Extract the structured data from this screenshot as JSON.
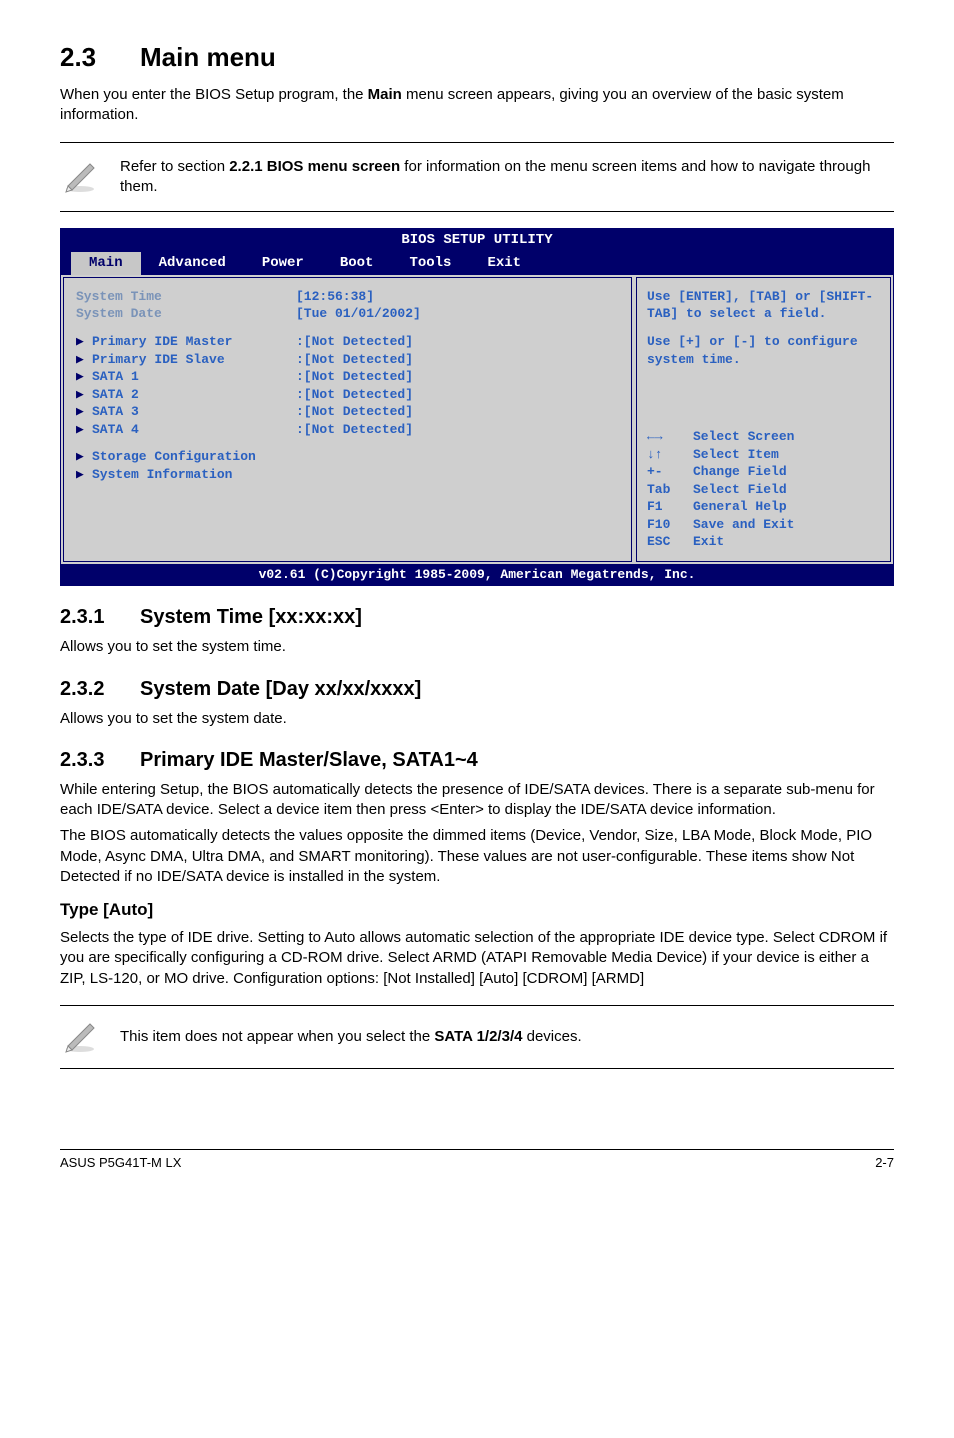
{
  "heading": {
    "num": "2.3",
    "title": "Main menu"
  },
  "intro": "When you enter the BIOS Setup program, the ",
  "intro_bold": "Main",
  "intro2": " menu screen appears, giving you an overview of the basic system information.",
  "note1a": "Refer to section ",
  "note1b": "2.2.1 BIOS menu screen",
  "note1c": " for information on the menu screen items and how to navigate through them.",
  "bios": {
    "title": "BIOS SETUP UTILITY",
    "tabs": [
      "Main",
      "Advanced",
      "Power",
      "Boot",
      "Tools",
      "Exit"
    ],
    "left": {
      "time_label": "System Time",
      "time_val": "[12:56:38]",
      "date_label": "System Date",
      "date_val": "[Tue 01/01/2002]",
      "items": [
        {
          "label": "Primary IDE Master",
          "val": ":[Not Detected]"
        },
        {
          "label": "Primary IDE Slave",
          "val": ":[Not Detected]"
        },
        {
          "label": "SATA 1",
          "val": ":[Not Detected]"
        },
        {
          "label": "SATA 2",
          "val": ":[Not Detected]"
        },
        {
          "label": "SATA 3",
          "val": ":[Not Detected]"
        },
        {
          "label": "SATA 4",
          "val": ":[Not Detected]"
        }
      ],
      "storage": "Storage Configuration",
      "sysinfo": "System Information"
    },
    "right": {
      "help1": "Use [ENTER], [TAB] or [SHIFT-TAB] to select a field.",
      "help2": "Use [+] or [-] to configure system time.",
      "nav": [
        {
          "k": "←→",
          "d": "Select Screen"
        },
        {
          "k": "↓↑",
          "d": "Select Item"
        },
        {
          "k": "+-",
          "d": "Change Field"
        },
        {
          "k": "Tab",
          "d": "Select Field"
        },
        {
          "k": "F1",
          "d": "General Help"
        },
        {
          "k": "F10",
          "d": "Save and Exit"
        },
        {
          "k": "ESC",
          "d": "Exit"
        }
      ]
    },
    "footer": "v02.61 (C)Copyright 1985-2009, American Megatrends, Inc."
  },
  "s231": {
    "num": "2.3.1",
    "title": "System Time [xx:xx:xx]",
    "body": "Allows you to set the system time."
  },
  "s232": {
    "num": "2.3.2",
    "title": "System Date [Day xx/xx/xxxx]",
    "body": "Allows you to set the system date."
  },
  "s233": {
    "num": "2.3.3",
    "title": "Primary IDE Master/Slave, SATA1~4",
    "p1": "While entering Setup, the BIOS automatically detects the presence of IDE/SATA devices. There is a separate sub-menu for each IDE/SATA device. Select a device item then press <Enter> to display the IDE/SATA device information.",
    "p2": "The BIOS automatically detects the values opposite the dimmed items (Device, Vendor, Size, LBA Mode, Block Mode, PIO Mode, Async DMA, Ultra DMA, and SMART monitoring). These values are not user-configurable. These items show Not Detected if no IDE/SATA device is installed in the system."
  },
  "type": {
    "title": "Type [Auto]",
    "body": "Selects the type of IDE drive. Setting to Auto allows automatic selection of the appropriate IDE device type. Select CDROM if you are specifically configuring a CD-ROM drive. Select ARMD (ATAPI Removable Media Device) if your device is either a ZIP, LS-120, or MO drive. Configuration options: [Not Installed] [Auto] [CDROM] [ARMD]"
  },
  "note2a": "This item does not appear when you select the ",
  "note2b": "SATA 1/2/3/4",
  "note2c": " devices.",
  "footer": {
    "left": "ASUS P5G41T-M LX",
    "right": "2-7"
  }
}
